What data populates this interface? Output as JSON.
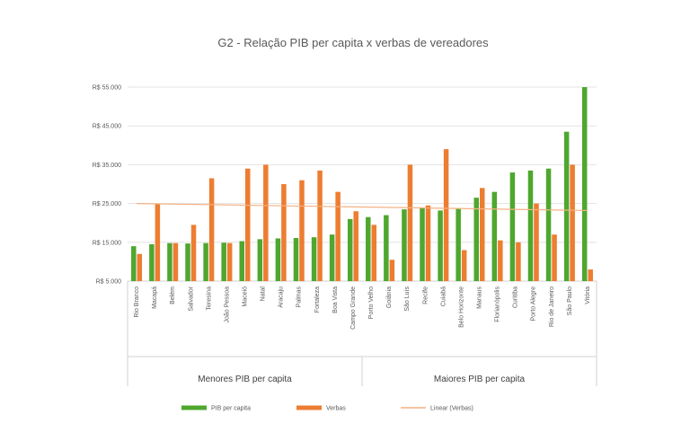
{
  "chart_data": {
    "type": "bar",
    "title": "G2 - Relação PIB per capita x verbas de vereadores",
    "ylim": [
      5000,
      55000
    ],
    "yticks": [
      5000,
      15000,
      25000,
      35000,
      45000,
      55000
    ],
    "ytick_labels": [
      "R$ 5.000",
      "R$ 15.000",
      "R$ 25.000",
      "R$ 35.000",
      "R$ 45.000",
      "R$ 55.000"
    ],
    "grid": true,
    "legend_position": "bottom",
    "categories": [
      "Rio Branco",
      "Macapá",
      "Belém",
      "Salvador",
      "Teresina",
      "João Pessoa",
      "Maceió",
      "Natal",
      "Aracaju",
      "Palmas",
      "Fortaleza",
      "Boa Vista",
      "Campo Grande",
      "Porto Velho",
      "Goiânia",
      "São Luís",
      "Recife",
      "Cuiabá",
      "Belo Horizonte",
      "Manaus",
      "Florianópolis",
      "Curitiba",
      "Porto Alegre",
      "Rio de Janeiro",
      "São Paulo",
      "Vitória"
    ],
    "groups": [
      {
        "label": "Menores PIB per capita",
        "from": 0,
        "to": 12
      },
      {
        "label": "Maiores PIB per capita",
        "from": 13,
        "to": 25
      }
    ],
    "series": [
      {
        "name": "PIB per capita",
        "color": "#4ea72e",
        "values": [
          14000,
          14500,
          14800,
          14700,
          14800,
          14900,
          15300,
          15800,
          16000,
          16100,
          16300,
          17000,
          21000,
          21500,
          22000,
          23500,
          24000,
          23200,
          23800,
          26500,
          28000,
          33000,
          33500,
          34000,
          43500,
          55000
        ]
      },
      {
        "name": "Verbas",
        "color": "#ed7d31",
        "values": [
          12000,
          25000,
          14800,
          19500,
          31500,
          14800,
          34000,
          35000,
          30000,
          31000,
          33500,
          28000,
          23000,
          19500,
          10500,
          35000,
          24500,
          39000,
          13000,
          29000,
          15500,
          15000,
          25000,
          17000,
          35000,
          8000
        ]
      }
    ],
    "trendline": {
      "name": "Linear (Verbas)",
      "color": "#f4b183",
      "start": 25000,
      "end": 23200
    }
  }
}
